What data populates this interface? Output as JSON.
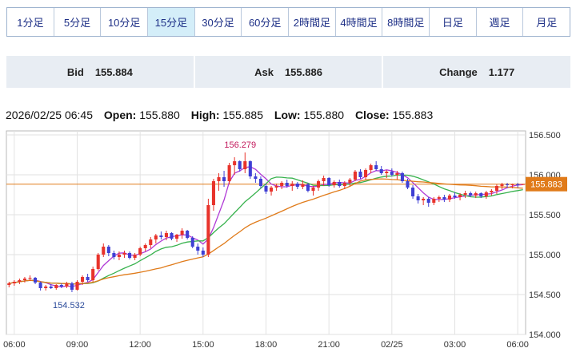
{
  "timeframes": [
    {
      "label": "1分足",
      "active": false
    },
    {
      "label": "5分足",
      "active": false
    },
    {
      "label": "10分足",
      "active": false
    },
    {
      "label": "15分足",
      "active": true
    },
    {
      "label": "30分足",
      "active": false
    },
    {
      "label": "60分足",
      "active": false
    },
    {
      "label": "2時間足",
      "active": false
    },
    {
      "label": "4時間足",
      "active": false
    },
    {
      "label": "8時間足",
      "active": false
    },
    {
      "label": "日足",
      "active": false
    },
    {
      "label": "週足",
      "active": false
    },
    {
      "label": "月足",
      "active": false
    }
  ],
  "quote": {
    "bid_label": "Bid",
    "bid": "155.884",
    "ask_label": "Ask",
    "ask": "155.886",
    "change_label": "Change",
    "change": "1.177"
  },
  "ohlc": {
    "datetime": "2026/02/25 06:45",
    "open_label": "Open:",
    "open": "155.880",
    "high_label": "High:",
    "high": "155.885",
    "low_label": "Low:",
    "low": "155.880",
    "close_label": "Close:",
    "close": "155.883"
  },
  "colors": {
    "up": "#e8332b",
    "down": "#3e3fd4",
    "ma_short": "#b03ad6",
    "ma_mid": "#37b24d",
    "ma_long": "#e07b1a",
    "current_line": "#e07b1a",
    "tab_text": "#1d2f86",
    "tab_active_bg": "#d4eef9"
  },
  "chart_data": {
    "type": "candlestick",
    "ylim": [
      154.0,
      156.55
    ],
    "y_ticks": [
      "154.000",
      "154.500",
      "155.000",
      "155.500",
      "156.000",
      "156.500"
    ],
    "x_ticks": [
      {
        "label": "06:00",
        "i": 1
      },
      {
        "label": "09:00",
        "i": 13
      },
      {
        "label": "12:00",
        "i": 25
      },
      {
        "label": "15:00",
        "i": 37
      },
      {
        "label": "18:00",
        "i": 49
      },
      {
        "label": "21:00",
        "i": 61
      },
      {
        "label": "02/25",
        "i": 73
      },
      {
        "label": "03:00",
        "i": 85
      },
      {
        "label": "06:00",
        "i": 97
      }
    ],
    "current_price": "155.883",
    "annotations": {
      "high_label": "156.279",
      "high_index": 45,
      "low_label": "154.532",
      "low_index": 12
    },
    "candles": [
      [
        154.62,
        154.66,
        154.59,
        154.64
      ],
      [
        154.64,
        154.68,
        154.61,
        154.66
      ],
      [
        154.66,
        154.7,
        154.63,
        154.68
      ],
      [
        154.68,
        154.72,
        154.65,
        154.7
      ],
      [
        154.7,
        154.74,
        154.67,
        154.71
      ],
      [
        154.71,
        154.72,
        154.63,
        154.65
      ],
      [
        154.65,
        154.66,
        154.55,
        154.58
      ],
      [
        154.58,
        154.62,
        154.55,
        154.6
      ],
      [
        154.6,
        154.63,
        154.57,
        154.58
      ],
      [
        154.58,
        154.63,
        154.56,
        154.62
      ],
      [
        154.62,
        154.64,
        154.58,
        154.6
      ],
      [
        154.6,
        154.66,
        154.58,
        154.64
      ],
      [
        154.64,
        154.66,
        154.53,
        154.56
      ],
      [
        154.56,
        154.68,
        154.55,
        154.66
      ],
      [
        154.66,
        154.74,
        154.62,
        154.72
      ],
      [
        154.72,
        154.76,
        154.66,
        154.68
      ],
      [
        154.68,
        154.85,
        154.66,
        154.82
      ],
      [
        154.82,
        155.02,
        154.8,
        155.0
      ],
      [
        155.0,
        155.14,
        154.97,
        155.1
      ],
      [
        155.1,
        155.12,
        154.98,
        155.02
      ],
      [
        155.02,
        155.05,
        154.94,
        154.97
      ],
      [
        154.97,
        155.04,
        154.93,
        155.0
      ],
      [
        155.0,
        155.05,
        154.96,
        155.02
      ],
      [
        155.02,
        155.04,
        154.94,
        154.96
      ],
      [
        154.96,
        155.02,
        154.93,
        155.0
      ],
      [
        155.0,
        155.1,
        154.98,
        155.08
      ],
      [
        155.08,
        155.14,
        155.04,
        155.12
      ],
      [
        155.12,
        155.22,
        155.08,
        155.19
      ],
      [
        155.19,
        155.26,
        155.14,
        155.24
      ],
      [
        155.24,
        155.29,
        155.19,
        155.22
      ],
      [
        155.22,
        155.3,
        155.18,
        155.27
      ],
      [
        155.27,
        155.28,
        155.18,
        155.2
      ],
      [
        155.2,
        155.26,
        155.16,
        155.25
      ],
      [
        155.25,
        155.33,
        155.2,
        155.3
      ],
      [
        155.3,
        155.31,
        155.19,
        155.21
      ],
      [
        155.21,
        155.23,
        155.08,
        155.1
      ],
      [
        155.1,
        155.14,
        155.0,
        155.05
      ],
      [
        155.05,
        155.09,
        154.97,
        155.0
      ],
      [
        155.0,
        155.7,
        154.97,
        155.62
      ],
      [
        155.62,
        155.95,
        155.55,
        155.92
      ],
      [
        155.92,
        156.02,
        155.8,
        155.97
      ],
      [
        155.97,
        156.05,
        155.85,
        155.92
      ],
      [
        155.92,
        156.15,
        155.88,
        156.12
      ],
      [
        156.12,
        156.22,
        156.0,
        156.17
      ],
      [
        156.17,
        156.18,
        156.04,
        156.07
      ],
      [
        156.07,
        156.28,
        156.02,
        156.17
      ],
      [
        156.17,
        156.18,
        155.95,
        155.98
      ],
      [
        155.98,
        156.02,
        155.9,
        155.95
      ],
      [
        155.95,
        155.98,
        155.83,
        155.86
      ],
      [
        155.86,
        155.89,
        155.76,
        155.79
      ],
      [
        155.79,
        155.86,
        155.74,
        155.84
      ],
      [
        155.84,
        155.89,
        155.8,
        155.86
      ],
      [
        155.86,
        155.92,
        155.82,
        155.9
      ],
      [
        155.9,
        155.94,
        155.84,
        155.86
      ],
      [
        155.86,
        155.92,
        155.8,
        155.89
      ],
      [
        155.89,
        155.91,
        155.82,
        155.85
      ],
      [
        155.85,
        155.93,
        155.82,
        155.88
      ],
      [
        155.88,
        155.9,
        155.78,
        155.8
      ],
      [
        155.8,
        155.86,
        155.74,
        155.84
      ],
      [
        155.84,
        155.94,
        155.8,
        155.92
      ],
      [
        155.92,
        155.99,
        155.86,
        155.96
      ],
      [
        155.96,
        155.97,
        155.85,
        155.87
      ],
      [
        155.87,
        155.93,
        155.84,
        155.91
      ],
      [
        155.91,
        155.94,
        155.84,
        155.86
      ],
      [
        155.86,
        155.92,
        155.82,
        155.9
      ],
      [
        155.9,
        155.96,
        155.86,
        155.94
      ],
      [
        155.94,
        156.06,
        155.92,
        156.04
      ],
      [
        156.04,
        156.07,
        155.95,
        155.97
      ],
      [
        155.97,
        156.08,
        155.94,
        156.06
      ],
      [
        156.06,
        156.14,
        156.02,
        156.12
      ],
      [
        156.12,
        156.17,
        156.05,
        156.07
      ],
      [
        156.07,
        156.11,
        156.0,
        156.02
      ],
      [
        156.02,
        156.06,
        155.96,
        156.04
      ],
      [
        156.04,
        156.08,
        155.98,
        156.0
      ],
      [
        156.0,
        156.05,
        155.94,
        156.02
      ],
      [
        156.02,
        156.04,
        155.9,
        155.92
      ],
      [
        155.92,
        155.95,
        155.82,
        155.84
      ],
      [
        155.84,
        155.87,
        155.7,
        155.73
      ],
      [
        155.73,
        155.76,
        155.64,
        155.68
      ],
      [
        155.68,
        155.72,
        155.62,
        155.7
      ],
      [
        155.7,
        155.72,
        155.6,
        155.65
      ],
      [
        155.65,
        155.72,
        155.62,
        155.7
      ],
      [
        155.7,
        155.74,
        155.66,
        155.72
      ],
      [
        155.72,
        155.75,
        155.66,
        155.69
      ],
      [
        155.69,
        155.76,
        155.66,
        155.74
      ],
      [
        155.74,
        155.78,
        155.7,
        155.72
      ],
      [
        155.72,
        155.77,
        155.68,
        155.75
      ],
      [
        155.75,
        155.8,
        155.71,
        155.77
      ],
      [
        155.77,
        155.79,
        155.72,
        155.74
      ],
      [
        155.74,
        155.79,
        155.71,
        155.77
      ],
      [
        155.77,
        155.78,
        155.71,
        155.73
      ],
      [
        155.73,
        155.8,
        155.7,
        155.78
      ],
      [
        155.78,
        155.82,
        155.74,
        155.8
      ],
      [
        155.8,
        155.88,
        155.76,
        155.86
      ],
      [
        155.86,
        155.9,
        155.82,
        155.88
      ],
      [
        155.88,
        155.9,
        155.84,
        155.87
      ],
      [
        155.87,
        155.89,
        155.83,
        155.88
      ],
      [
        155.88,
        155.9,
        155.84,
        155.87
      ],
      [
        155.88,
        155.885,
        155.88,
        155.883
      ]
    ],
    "ma_periods": [
      5,
      13,
      30
    ]
  }
}
